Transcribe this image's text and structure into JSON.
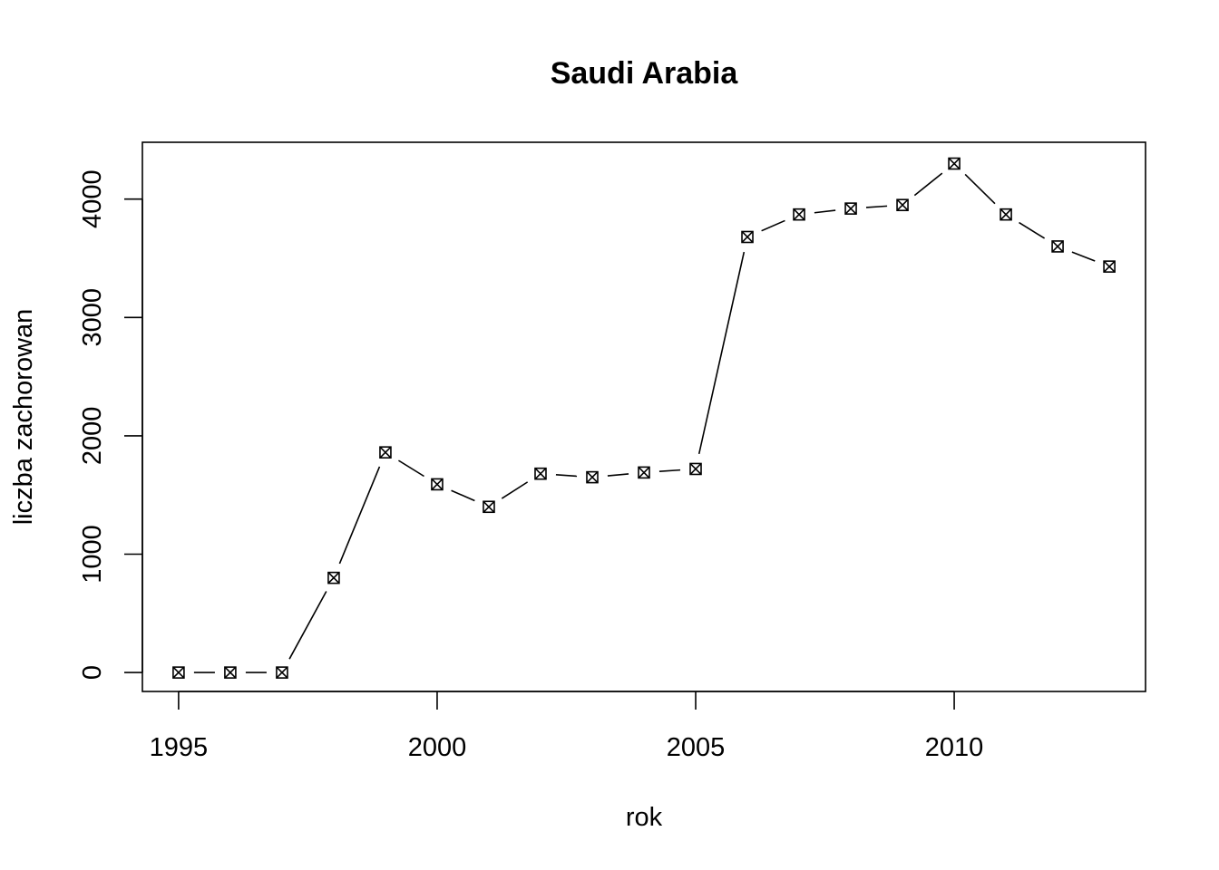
{
  "chart_data": {
    "type": "line",
    "title": "Saudi Arabia",
    "xlabel": "rok",
    "ylabel": "liczba zachorowan",
    "xlim": [
      1994.3,
      2013.7
    ],
    "ylim": [
      -160,
      4480
    ],
    "x_ticks": [
      1995,
      2000,
      2005,
      2010
    ],
    "y_ticks": [
      0,
      1000,
      2000,
      3000,
      4000
    ],
    "x_tick_labels": [
      "1995",
      "2000",
      "2005",
      "2010"
    ],
    "y_tick_labels": [
      "0",
      "1000",
      "2000",
      "3000",
      "4000"
    ],
    "grid": false,
    "legend": "none",
    "marker": "boxed-x",
    "line_style": "overplotted-points-and-lines",
    "color": "#000000",
    "series": [
      {
        "x": [
          1995,
          1996,
          1997,
          1998,
          1999,
          2000,
          2001,
          2002,
          2003,
          2004,
          2005,
          2006,
          2007,
          2008,
          2009,
          2010,
          2011,
          2012,
          2013
        ],
        "values": [
          0,
          0,
          0,
          800,
          1860,
          1590,
          1400,
          1680,
          1650,
          1690,
          1720,
          3680,
          3870,
          3920,
          3950,
          4300,
          3870,
          3600,
          3430
        ]
      }
    ]
  }
}
